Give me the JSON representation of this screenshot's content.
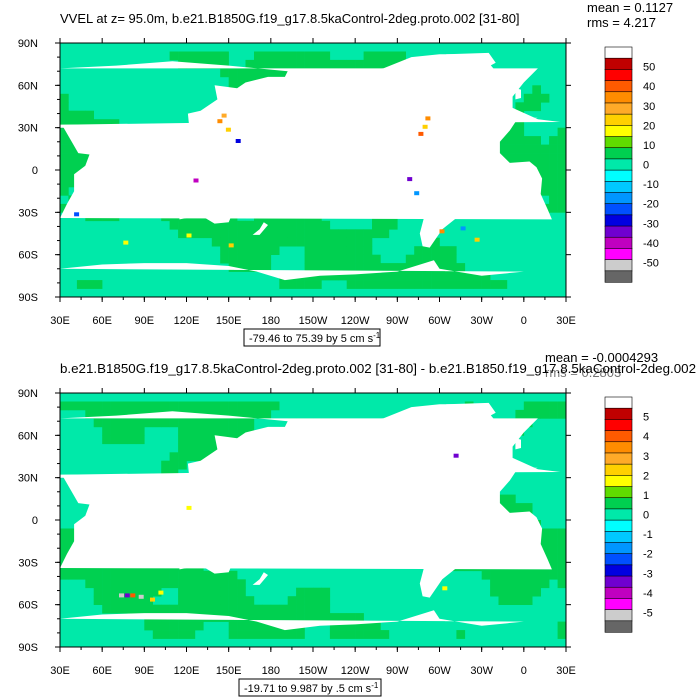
{
  "chart_data": [
    {
      "type": "heatmap",
      "title": "VVEL at z=  95.0m, b.e21.B1850G.f19_g17.8.5kaControl-2deg.proto.002 [31-80]",
      "stats": {
        "mean": "mean = 0.1127",
        "rms": "rms = 4.217"
      },
      "xlabel": "",
      "ylabel": "",
      "x_tick_labels": [
        "30E",
        "60E",
        "90E",
        "120E",
        "150E",
        "180",
        "150W",
        "120W",
        "90W",
        "60W",
        "30W",
        "0",
        "30E"
      ],
      "y_tick_labels": [
        "90N",
        "60N",
        "30N",
        "0",
        "30S",
        "60S",
        "90S"
      ],
      "range_label": "-79.46 to 75.39 by 5 cm s",
      "range_superscript": "-1",
      "colorbar_labels": [
        "50",
        "40",
        "30",
        "20",
        "10",
        "0",
        "-10",
        "-20",
        "-30",
        "-40",
        "-50"
      ],
      "colorbar_colors": [
        "#ffffff",
        "#c00000",
        "#ff0000",
        "#ff5a00",
        "#ff8c00",
        "#ffaa28",
        "#ffd000",
        "#ffff00",
        "#5fdc00",
        "#00d050",
        "#00e9a9",
        "#00ffff",
        "#00c8ff",
        "#0096ff",
        "#0050ff",
        "#0000e0",
        "#7000d0",
        "#c000c0",
        "#ff00ff",
        "#cccccc",
        "#666666"
      ]
    },
    {
      "type": "heatmap",
      "title": "b.e21.B1850G.f19_g17.8.5kaControl-2deg.proto.002 [31-80] - b.e21.B1850.f19_g17.8.5kaControl-2deg.002",
      "stats": {
        "mean": "mean = -0.0004293",
        "rms": "rms = 0.2803"
      },
      "xlabel": "",
      "ylabel": "",
      "x_tick_labels": [
        "30E",
        "60E",
        "90E",
        "120E",
        "150E",
        "180",
        "150W",
        "120W",
        "90W",
        "60W",
        "30W",
        "0",
        "30E"
      ],
      "y_tick_labels": [
        "90N",
        "60N",
        "30N",
        "0",
        "30S",
        "60S",
        "90S"
      ],
      "range_label": "-19.71 to 9.987 by .5 cm s",
      "range_superscript": "-1",
      "colorbar_labels": [
        "5",
        "4",
        "3",
        "2",
        "1",
        "0",
        "-1",
        "-2",
        "-3",
        "-4",
        "-5"
      ],
      "colorbar_colors": [
        "#ffffff",
        "#c00000",
        "#ff0000",
        "#ff5a00",
        "#ff8c00",
        "#ffaa28",
        "#ffd000",
        "#ffff00",
        "#5fdc00",
        "#00d050",
        "#00e9a9",
        "#00ffff",
        "#00c8ff",
        "#0096ff",
        "#0050ff",
        "#0000e0",
        "#7000d0",
        "#c000c0",
        "#ff00ff",
        "#cccccc",
        "#666666"
      ]
    }
  ],
  "colors": {
    "ocean_positive": "#00d050",
    "ocean_negative": "#00e9a9",
    "land": "#ffffff"
  }
}
